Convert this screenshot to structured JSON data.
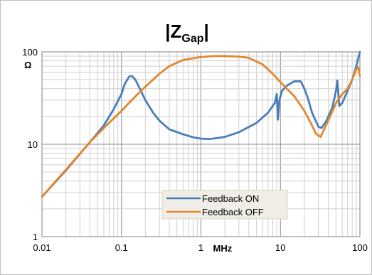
{
  "chart_data": {
    "type": "line",
    "title": "|Z",
    "title_subscript": "Gap",
    "title_suffix": "|",
    "xlabel": "MHz",
    "ylabel": "Ω",
    "x_scale": "log",
    "y_scale": "log",
    "xlim": [
      0.01,
      100
    ],
    "ylim": [
      1,
      100
    ],
    "x_ticks": [
      {
        "value": 0.01,
        "label": "0.01"
      },
      {
        "value": 0.1,
        "label": "0.1"
      },
      {
        "value": 1,
        "label": "1"
      },
      {
        "value": 10,
        "label": "10"
      },
      {
        "value": 100,
        "label": "100"
      }
    ],
    "y_ticks": [
      {
        "value": 1,
        "label": "1"
      },
      {
        "value": 10,
        "label": "10"
      },
      {
        "value": 100,
        "label": "100"
      }
    ],
    "grid": true,
    "legend_position": "bottom-center",
    "series": [
      {
        "name": "Feedback ON",
        "color": "#4a7ebb",
        "points": [
          [
            0.01,
            2.7
          ],
          [
            0.02,
            5.2
          ],
          [
            0.04,
            10.5
          ],
          [
            0.06,
            16
          ],
          [
            0.08,
            24
          ],
          [
            0.1,
            35
          ],
          [
            0.11,
            45
          ],
          [
            0.125,
            54
          ],
          [
            0.135,
            55
          ],
          [
            0.15,
            50
          ],
          [
            0.17,
            40
          ],
          [
            0.2,
            30
          ],
          [
            0.25,
            22
          ],
          [
            0.3,
            18
          ],
          [
            0.4,
            14.5
          ],
          [
            0.6,
            12.8
          ],
          [
            0.8,
            11.9
          ],
          [
            1,
            11.5
          ],
          [
            1.3,
            11.4
          ],
          [
            2,
            12
          ],
          [
            3,
            13.5
          ],
          [
            5,
            17
          ],
          [
            7,
            22
          ],
          [
            8.5,
            28
          ],
          [
            9,
            35
          ],
          [
            9.3,
            18.5
          ],
          [
            9.7,
            30
          ],
          [
            10.5,
            38
          ],
          [
            12,
            43
          ],
          [
            15,
            48
          ],
          [
            18,
            48
          ],
          [
            20,
            40
          ],
          [
            22,
            32
          ],
          [
            25,
            22
          ],
          [
            30,
            15.5
          ],
          [
            33,
            15
          ],
          [
            38,
            18
          ],
          [
            45,
            25
          ],
          [
            50,
            38
          ],
          [
            52,
            49
          ],
          [
            55,
            26
          ],
          [
            60,
            28
          ],
          [
            70,
            38
          ],
          [
            80,
            50
          ],
          [
            90,
            70
          ],
          [
            100,
            100
          ]
        ]
      },
      {
        "name": "Feedback OFF",
        "color": "#e3872c",
        "points": [
          [
            0.01,
            2.7
          ],
          [
            0.02,
            5.3
          ],
          [
            0.04,
            10.5
          ],
          [
            0.06,
            15
          ],
          [
            0.1,
            23
          ],
          [
            0.15,
            33
          ],
          [
            0.2,
            42
          ],
          [
            0.3,
            58
          ],
          [
            0.4,
            70
          ],
          [
            0.6,
            82
          ],
          [
            1,
            88
          ],
          [
            1.5,
            90
          ],
          [
            2,
            90
          ],
          [
            3,
            89
          ],
          [
            4,
            86
          ],
          [
            6,
            73
          ],
          [
            8,
            58
          ],
          [
            10,
            47
          ],
          [
            15,
            33
          ],
          [
            20,
            23
          ],
          [
            25,
            16
          ],
          [
            28,
            13
          ],
          [
            32,
            12
          ],
          [
            40,
            18
          ],
          [
            50,
            28
          ],
          [
            60,
            35
          ],
          [
            70,
            40
          ],
          [
            80,
            50
          ],
          [
            90,
            65
          ],
          [
            95,
            68
          ],
          [
            100,
            55
          ]
        ]
      }
    ]
  }
}
